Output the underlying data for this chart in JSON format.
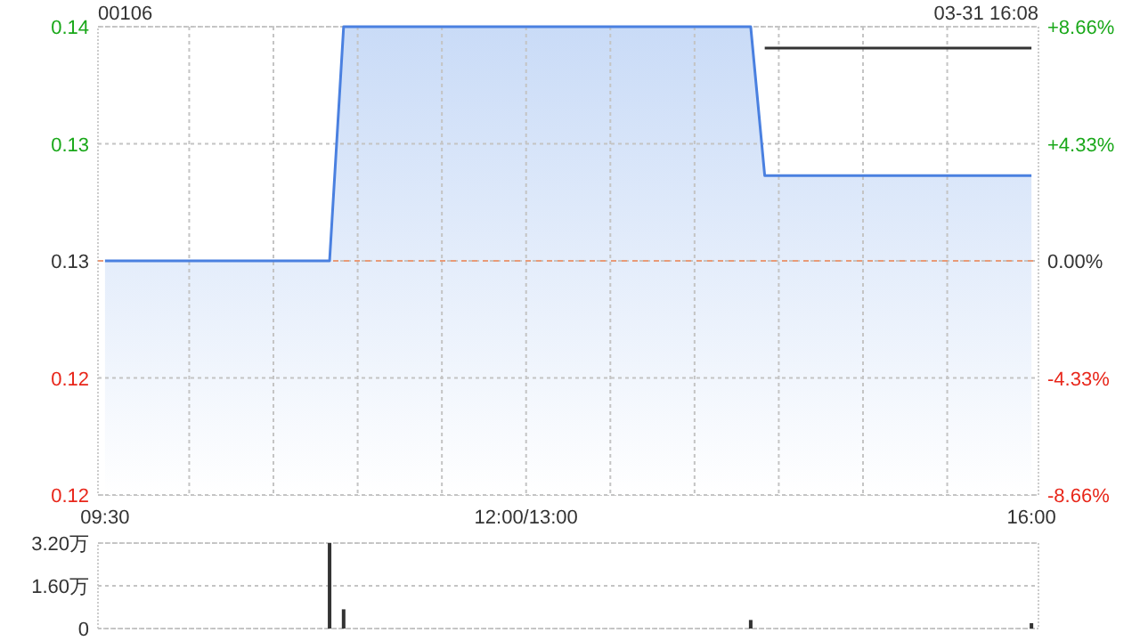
{
  "chart_data": [
    {
      "type": "area",
      "title": "00106",
      "annotations": [
        "03-31 16:08"
      ],
      "grid": true,
      "categories": [
        "09:30",
        null,
        null,
        null,
        null,
        null,
        null,
        null,
        null,
        null,
        null,
        null,
        null,
        null,
        null,
        null,
        null,
        null,
        null,
        null,
        null,
        null,
        null,
        null,
        null,
        null,
        null,
        null,
        null,
        null,
        "12:00/13:00",
        null,
        null,
        null,
        null,
        null,
        null,
        null,
        null,
        null,
        null,
        null,
        null,
        null,
        null,
        null,
        null,
        null,
        null,
        null,
        null,
        null,
        null,
        null,
        null,
        null,
        null,
        null,
        null,
        null,
        null,
        null,
        null,
        null,
        null,
        null,
        "16:00"
      ],
      "ylim": [
        0.116,
        0.138
      ],
      "yticks": [
        {
          "value": 0.116,
          "label": "0.12"
        },
        {
          "value": 0.1215,
          "label": "0.12"
        },
        {
          "value": 0.127,
          "label": "0.13"
        },
        {
          "value": 0.1325,
          "label": "0.13"
        },
        {
          "value": 0.138,
          "label": "0.14"
        }
      ],
      "y2lim": [
        -8.66,
        8.66
      ],
      "y2ticks": [
        {
          "value": -8.66,
          "label": "-8.66%"
        },
        {
          "value": -4.33,
          "label": "-4.33%"
        },
        {
          "value": 0,
          "label": "0.00%"
        },
        {
          "value": 4.33,
          "label": "+4.33%"
        },
        {
          "value": 8.66,
          "label": "+8.66%"
        }
      ],
      "ref_lines": [
        {
          "axis": "y",
          "value": 0.127,
          "color": "#e89a78",
          "line_style": "dashed"
        }
      ],
      "series": [
        {
          "type": "area",
          "color": "#4a80e0",
          "values": [
            0.127,
            0.127,
            0.127,
            0.127,
            0.127,
            0.127,
            0.127,
            0.127,
            0.127,
            0.127,
            0.127,
            0.127,
            0.127,
            0.127,
            0.127,
            0.127,
            0.127,
            0.138,
            0.138,
            0.138,
            0.138,
            0.138,
            0.138,
            0.138,
            0.138,
            0.138,
            0.138,
            0.138,
            0.138,
            0.138,
            0.138,
            0.138,
            0.138,
            0.138,
            0.138,
            0.138,
            0.138,
            0.138,
            0.138,
            0.138,
            0.138,
            0.138,
            0.138,
            0.138,
            0.138,
            0.138,
            0.138,
            0.131,
            0.131,
            0.131,
            0.131,
            0.131,
            0.131,
            0.131,
            0.131,
            0.131,
            0.131,
            0.131,
            0.131,
            0.131,
            0.131,
            0.131,
            0.131,
            0.131,
            0.131,
            0.131,
            0.131
          ]
        },
        {
          "type": "line",
          "color": "#333333",
          "values": [
            null,
            null,
            null,
            null,
            null,
            null,
            null,
            null,
            null,
            null,
            null,
            null,
            null,
            null,
            null,
            null,
            null,
            null,
            null,
            null,
            null,
            null,
            null,
            null,
            null,
            null,
            null,
            null,
            null,
            null,
            null,
            null,
            null,
            null,
            null,
            null,
            null,
            null,
            null,
            null,
            null,
            null,
            null,
            null,
            null,
            null,
            null,
            0.137,
            0.137,
            0.137,
            0.137,
            0.137,
            0.137,
            0.137,
            0.137,
            0.137,
            0.137,
            0.137,
            0.137,
            0.137,
            0.137,
            0.137,
            0.137,
            0.137,
            0.137,
            0.137,
            0.137
          ]
        }
      ]
    },
    {
      "type": "bar",
      "color": "#333333",
      "grid": "y",
      "categories": [
        null,
        null,
        null,
        null,
        null,
        null,
        null,
        null,
        null,
        null,
        null,
        null,
        null,
        null,
        null,
        null,
        null,
        null,
        null,
        null,
        null,
        null,
        null,
        null,
        null,
        null,
        null,
        null,
        null,
        null,
        null,
        null,
        null,
        null,
        null,
        null,
        null,
        null,
        null,
        null,
        null,
        null,
        null,
        null,
        null,
        null,
        null,
        null,
        null,
        null,
        null,
        null,
        null,
        null,
        null,
        null,
        null,
        null,
        null,
        null,
        null,
        null,
        null,
        null,
        null,
        null,
        null
      ],
      "values": [
        null,
        null,
        null,
        null,
        null,
        null,
        null,
        null,
        null,
        null,
        null,
        null,
        null,
        null,
        null,
        null,
        3.2,
        0.72,
        null,
        null,
        null,
        null,
        null,
        null,
        null,
        null,
        null,
        null,
        null,
        null,
        null,
        null,
        null,
        null,
        null,
        null,
        null,
        null,
        null,
        null,
        null,
        null,
        null,
        null,
        null,
        null,
        0.32,
        null,
        null,
        null,
        null,
        null,
        null,
        null,
        null,
        null,
        null,
        null,
        null,
        null,
        null,
        null,
        null,
        null,
        null,
        null,
        0.2
      ],
      "ylim": [
        0,
        3.2
      ],
      "yticks": [
        0,
        {
          "value": 1.6,
          "label": "1.60万"
        },
        {
          "value": 3.2,
          "label": "3.20万"
        }
      ]
    }
  ]
}
